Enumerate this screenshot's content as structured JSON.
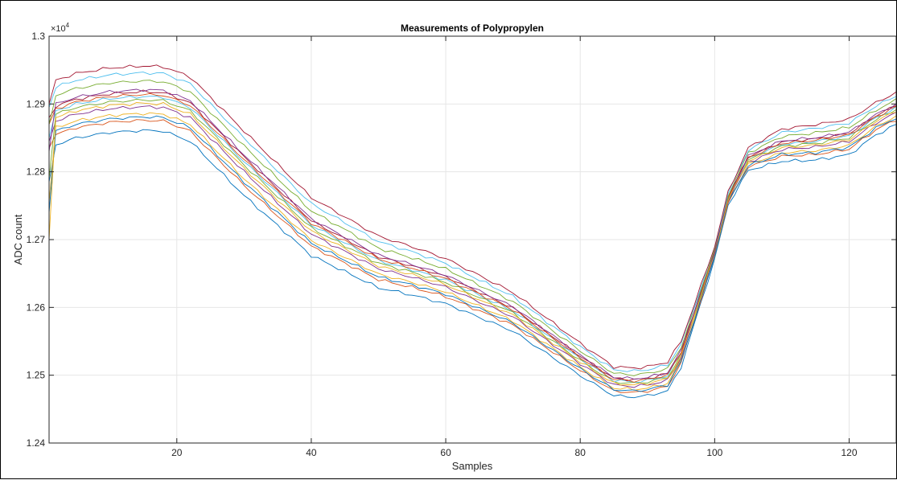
{
  "chart_data": {
    "type": "line",
    "title": "Measurements of Polypropylen",
    "xlabel": "Samples",
    "ylabel": "ADC count",
    "xlim": [
      1,
      127
    ],
    "ylim": [
      12400,
      13000
    ],
    "xticks": [
      20,
      40,
      60,
      80,
      100,
      120
    ],
    "xtick_labels": [
      "20",
      "40",
      "60",
      "80",
      "100",
      "120"
    ],
    "yticks": [
      12400,
      12500,
      12600,
      12700,
      12800,
      12900,
      13000
    ],
    "ytick_labels": [
      "1.24",
      "1.25",
      "1.26",
      "1.27",
      "1.28",
      "1.29",
      "1.3"
    ],
    "y_exponent": {
      "base": "×10",
      "power": "4"
    },
    "grid": true,
    "series_shape": {
      "x": [
        1,
        2,
        5,
        10,
        15,
        18,
        22,
        30,
        40,
        50,
        55,
        60,
        70,
        80,
        85,
        88,
        90,
        93,
        95,
        97,
        100,
        102,
        105,
        110,
        115,
        120,
        124,
        127
      ],
      "base": [
        12760,
        12885,
        12895,
        12903,
        12906,
        12905,
        12890,
        12810,
        12717,
        12665,
        12652,
        12637,
        12592,
        12522,
        12490,
        12488,
        12490,
        12497,
        12530,
        12590,
        12680,
        12760,
        12818,
        12838,
        12842,
        12850,
        12877,
        12892
      ],
      "spread": [
        1.0,
        1.0,
        1.0,
        1.0,
        1.0,
        1.0,
        1.0,
        1.0,
        0.9,
        0.8,
        0.75,
        0.7,
        0.6,
        0.5,
        0.45,
        0.45,
        0.45,
        0.45,
        0.4,
        0.3,
        0.2,
        0.2,
        0.35,
        0.5,
        0.55,
        0.55,
        0.5,
        0.5
      ]
    },
    "series": [
      {
        "color": "#0072bd",
        "offset": -45,
        "start": 12785
      },
      {
        "color": "#d95319",
        "offset": -30,
        "start": 12835
      },
      {
        "color": "#edb120",
        "offset": -20,
        "start": 12755
      },
      {
        "color": "#7e2f8e",
        "offset": -10,
        "start": 12845
      },
      {
        "color": "#77ac30",
        "offset": 0,
        "start": 12790
      },
      {
        "color": "#4dbeee",
        "offset": 5,
        "start": 12850
      },
      {
        "color": "#a2142f",
        "offset": 12,
        "start": 12880
      },
      {
        "color": "#0072bd",
        "offset": -25,
        "start": 12740
      },
      {
        "color": "#d95319",
        "offset": 8,
        "start": 12870
      },
      {
        "color": "#edb120",
        "offset": -5,
        "start": 12700
      },
      {
        "color": "#7e2f8e",
        "offset": 15,
        "start": 12830
      },
      {
        "color": "#77ac30",
        "offset": 28,
        "start": 12870
      },
      {
        "color": "#4dbeee",
        "offset": 40,
        "start": 12895
      },
      {
        "color": "#a2142f",
        "offset": 50,
        "start": 12900
      }
    ]
  }
}
